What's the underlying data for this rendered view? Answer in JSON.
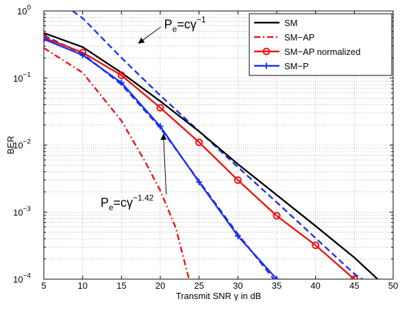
{
  "chart_data": {
    "type": "line",
    "xlabel": "Transmit SNR γ in dB",
    "ylabel": "BER",
    "xlim": [
      5,
      50
    ],
    "ylim": [
      0.0001,
      1
    ],
    "yscale": "log",
    "grid": true,
    "legend_position": "top-right",
    "xticks": [
      "5",
      "10",
      "15",
      "20",
      "25",
      "30",
      "35",
      "40",
      "45",
      "50"
    ],
    "yticks": [
      {
        "base": "10",
        "exp": "0"
      },
      {
        "base": "10",
        "exp": "−1"
      },
      {
        "base": "10",
        "exp": "−2"
      },
      {
        "base": "10",
        "exp": "−3"
      },
      {
        "base": "10",
        "exp": "−4"
      }
    ],
    "series": [
      {
        "name": "SM",
        "color": "#000000",
        "dash": "solid",
        "marker": "none",
        "x": [
          5,
          10,
          15,
          20,
          25,
          30,
          35,
          40,
          45,
          48
        ],
        "y": [
          0.47,
          0.29,
          0.12,
          0.045,
          0.016,
          0.0052,
          0.0018,
          0.00062,
          0.00021,
          0.0001
        ]
      },
      {
        "name": "SM−AP",
        "color": "#ee1111",
        "dash": "dashdot",
        "marker": "none",
        "x": [
          5,
          10,
          15,
          18,
          20,
          22,
          23.7
        ],
        "y": [
          0.28,
          0.12,
          0.023,
          0.0058,
          0.0021,
          0.00058,
          0.0001
        ]
      },
      {
        "name": "SM−AP normalized",
        "color": "#ee1111",
        "dash": "solid",
        "marker": "circle",
        "x": [
          5,
          10,
          15,
          20,
          25,
          30,
          35,
          40,
          45
        ],
        "y": [
          0.4,
          0.24,
          0.11,
          0.036,
          0.011,
          0.003,
          0.00088,
          0.00032,
          0.0001
        ]
      },
      {
        "name": "SM−P",
        "color": "#1b2ff0",
        "dash": "solid",
        "marker": "plus",
        "x": [
          5,
          10,
          15,
          20,
          25,
          30,
          35
        ],
        "y": [
          0.38,
          0.22,
          0.085,
          0.019,
          0.0028,
          0.00044,
          0.0001
        ]
      }
    ],
    "extra_lines": [
      {
        "color": "#1b2ff0",
        "dash": "dashed",
        "x": [
          8.7,
          10,
          15,
          20,
          25,
          30,
          35,
          40,
          45,
          47.3
        ],
        "y": [
          1,
          0.78,
          0.2,
          0.055,
          0.016,
          0.0047,
          0.0014,
          0.00041,
          0.00012,
          8e-05
        ]
      },
      {
        "color": "#1b2ff0",
        "dash": "dashed",
        "x": [
          5,
          10,
          15,
          20,
          25,
          30,
          35
        ],
        "y": [
          0.43,
          0.23,
          0.08,
          0.018,
          0.0029,
          0.00047,
          8.8e-05
        ]
      }
    ],
    "annotations": [
      {
        "base": "P",
        "sub": "e",
        "mid": "=cγ",
        "sup": "−1",
        "x": 20.5,
        "y": 0.55,
        "arrow_to": [
          17.2,
          0.33
        ]
      },
      {
        "base": "P",
        "sub": "e",
        "mid": "=cγ",
        "sup": "−1.42",
        "x": 12.3,
        "y": 0.0012,
        "arrow_to": [
          20.4,
          0.0145
        ]
      }
    ]
  }
}
